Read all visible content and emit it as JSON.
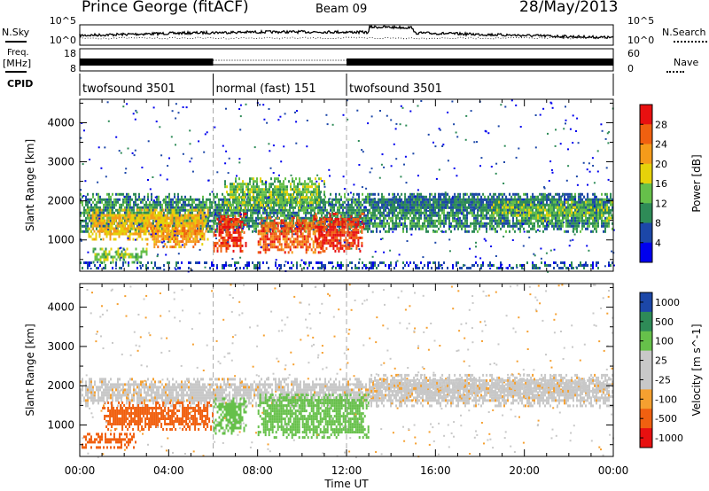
{
  "header": {
    "station": "Prince George (fitACF)",
    "beam": "Beam 09",
    "date": "28/May/2013"
  },
  "side_labels": {
    "nsky": "N.Sky",
    "nsearch": "N.Search",
    "freq_line1": "Freq.",
    "freq_line2": "[MHz]",
    "nave": "Nave",
    "cpid": "CPID"
  },
  "noise_panel": {
    "left_ticks": [
      "10^5",
      "10^0"
    ],
    "right_ticks": [
      "10^5",
      "10^0"
    ]
  },
  "freq_panel": {
    "left_ticks": [
      "18",
      "8"
    ],
    "right_ticks": [
      "60",
      "0"
    ]
  },
  "cpid_modes": [
    {
      "label": "twofsound 3501",
      "start_hour": 0
    },
    {
      "label": "normal (fast) 151",
      "start_hour": 6
    },
    {
      "label": "twofsound 3501",
      "start_hour": 12
    }
  ],
  "colors": {
    "power_scale": [
      "#0000ee",
      "#1c47a8",
      "#2e8b57",
      "#66c04a",
      "#e6d20a",
      "#f59b1a",
      "#f06010",
      "#e81010"
    ],
    "velocity_scale": [
      "#e81010",
      "#f06010",
      "#f5a030",
      "#c8c8c8",
      "#c8c8c8",
      "#66c04a",
      "#2e8b57",
      "#1c47a8"
    ]
  },
  "chart_data": [
    {
      "type": "heatmap",
      "title": "Power",
      "ylabel": "Slant Range [km]",
      "ylim": [
        200,
        4600
      ],
      "yticks": [
        "1000",
        "2000",
        "3000",
        "4000"
      ],
      "xlabel": "",
      "xticks": [
        "00:00",
        "04:00",
        "08:00",
        "12:00",
        "16:00",
        "20:00",
        "00:00"
      ],
      "colorbar_label": "Power [dB]",
      "colorbar_ticks": [
        "28",
        "24",
        "20",
        "16",
        "12",
        "8",
        "4"
      ],
      "regions": [
        {
          "t0": 0.0,
          "t1": 24.0,
          "r0": 1200,
          "r1": 2200,
          "level": 10
        },
        {
          "t0": 0.3,
          "t1": 5.8,
          "r0": 1000,
          "r1": 1800,
          "level": 20
        },
        {
          "t0": 0.5,
          "t1": 3.0,
          "r0": 450,
          "r1": 800,
          "level": 14
        },
        {
          "t0": 3.0,
          "t1": 5.5,
          "r0": 800,
          "r1": 1400,
          "level": 22
        },
        {
          "t0": 6.0,
          "t1": 7.5,
          "r0": 700,
          "r1": 1700,
          "level": 28
        },
        {
          "t0": 6.5,
          "t1": 11.0,
          "r0": 1800,
          "r1": 2600,
          "level": 14
        },
        {
          "t0": 8.0,
          "t1": 11.0,
          "r0": 700,
          "r1": 1600,
          "level": 26
        },
        {
          "t0": 10.5,
          "t1": 12.8,
          "r0": 700,
          "r1": 1700,
          "level": 28
        },
        {
          "t0": 13.0,
          "t1": 24.0,
          "r0": 1700,
          "r1": 2200,
          "level": 8
        },
        {
          "t0": 18.5,
          "t1": 24.0,
          "r0": 1500,
          "r1": 2000,
          "level": 14
        },
        {
          "t0": 0.0,
          "t1": 24.0,
          "r0": 250,
          "r1": 450,
          "level": 6
        }
      ]
    },
    {
      "type": "heatmap",
      "title": "Velocity",
      "ylabel": "Slant Range [km]",
      "ylim": [
        200,
        4600
      ],
      "yticks": [
        "1000",
        "2000",
        "3000",
        "4000"
      ],
      "xlabel": "Time UT",
      "xticks": [
        "00:00",
        "04:00",
        "08:00",
        "12:00",
        "16:00",
        "20:00",
        "00:00"
      ],
      "colorbar_label": "Velocity [m s^-1]",
      "colorbar_ticks": [
        "1000",
        "500",
        "100",
        "25",
        "-25",
        "-100",
        "-500",
        "-1000"
      ],
      "regions": [
        {
          "t0": 0.0,
          "t1": 24.0,
          "r0": 1500,
          "r1": 2200,
          "level": 0
        },
        {
          "t0": 1.0,
          "t1": 6.0,
          "r0": 900,
          "r1": 1600,
          "level": -300
        },
        {
          "t0": 0.0,
          "t1": 2.5,
          "r0": 400,
          "r1": 800,
          "level": -300
        },
        {
          "t0": 6.0,
          "t1": 7.5,
          "r0": 800,
          "r1": 1700,
          "level": 300
        },
        {
          "t0": 8.0,
          "t1": 13.0,
          "r0": 700,
          "r1": 1800,
          "level": 300
        },
        {
          "t0": 13.0,
          "t1": 24.0,
          "r0": 1700,
          "r1": 2300,
          "level": 0
        }
      ]
    }
  ]
}
